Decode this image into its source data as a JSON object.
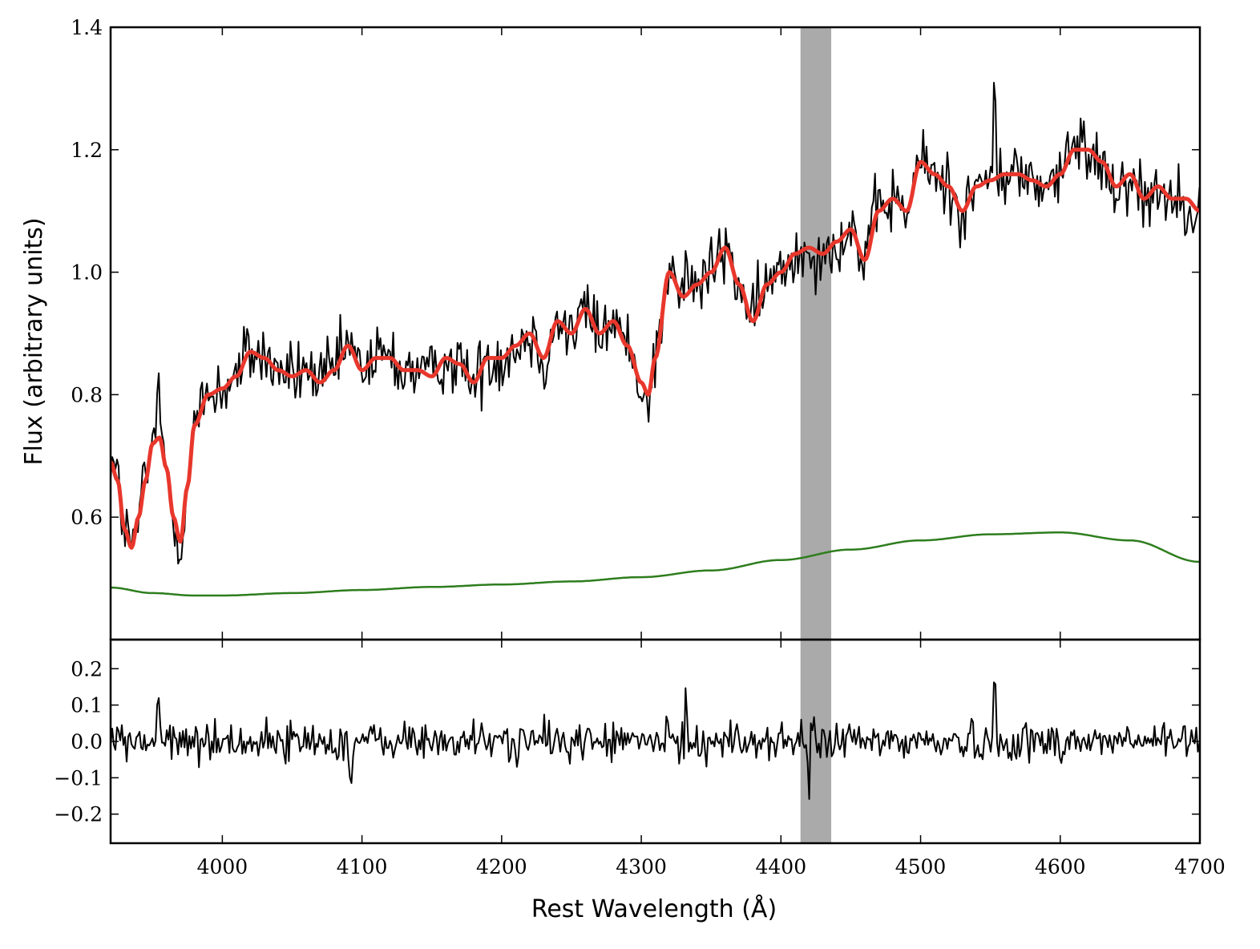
{
  "chart_data": {
    "type": "line",
    "xlabel": "Rest Wavelength (Å)",
    "xlim": [
      3920,
      4700
    ],
    "x_ticks": [
      4000,
      4100,
      4200,
      4300,
      4400,
      4500,
      4600,
      4700
    ],
    "shaded_band": {
      "x_start": 4414,
      "x_end": 4436,
      "color": "#aaaaaa"
    },
    "panels": [
      {
        "id": "flux",
        "ylabel": "Flux (arbitrary units)",
        "ylim": [
          0.4,
          1.4
        ],
        "y_ticks": [
          0.6,
          0.8,
          1.0,
          1.2,
          1.4
        ],
        "y_tick_labels": [
          "0.6",
          "0.8",
          "1.0",
          "1.2",
          "1.4"
        ],
        "series": [
          {
            "role": "observed",
            "color": "#000000",
            "width": 2,
            "noise_amp": 0.05,
            "spikes": [
              [
                4553,
                0.22
              ],
              [
                3954,
                0.18
              ],
              [
                4332,
                0.1
              ]
            ],
            "x": [
              3920,
              3925,
              3930,
              3935,
              3940,
              3945,
              3950,
              3955,
              3960,
              3965,
              3970,
              3975,
              3980,
              3990,
              4000,
              4010,
              4020,
              4030,
              4040,
              4050,
              4060,
              4070,
              4080,
              4090,
              4100,
              4110,
              4120,
              4130,
              4140,
              4150,
              4160,
              4170,
              4180,
              4190,
              4200,
              4210,
              4220,
              4230,
              4240,
              4250,
              4260,
              4270,
              4280,
              4290,
              4300,
              4305,
              4310,
              4320,
              4330,
              4340,
              4350,
              4360,
              4370,
              4380,
              4390,
              4400,
              4410,
              4420,
              4430,
              4440,
              4450,
              4460,
              4470,
              4480,
              4490,
              4500,
              4510,
              4520,
              4530,
              4540,
              4550,
              4560,
              4570,
              4580,
              4590,
              4600,
              4610,
              4620,
              4630,
              4640,
              4650,
              4660,
              4670,
              4680,
              4690,
              4700
            ],
            "values": [
              0.7,
              0.66,
              0.58,
              0.55,
              0.6,
              0.66,
              0.72,
              0.73,
              0.68,
              0.6,
              0.56,
              0.65,
              0.75,
              0.8,
              0.81,
              0.83,
              0.87,
              0.86,
              0.84,
              0.83,
              0.84,
              0.82,
              0.84,
              0.88,
              0.84,
              0.86,
              0.86,
              0.84,
              0.84,
              0.83,
              0.86,
              0.85,
              0.82,
              0.86,
              0.86,
              0.88,
              0.9,
              0.86,
              0.92,
              0.9,
              0.94,
              0.9,
              0.92,
              0.88,
              0.82,
              0.8,
              0.86,
              1.0,
              0.96,
              0.98,
              1.0,
              1.04,
              0.98,
              0.92,
              0.98,
              1.0,
              1.03,
              1.04,
              1.03,
              1.05,
              1.07,
              1.02,
              1.1,
              1.12,
              1.1,
              1.18,
              1.16,
              1.14,
              1.1,
              1.14,
              1.15,
              1.16,
              1.16,
              1.15,
              1.14,
              1.16,
              1.2,
              1.2,
              1.18,
              1.14,
              1.16,
              1.12,
              1.14,
              1.12,
              1.12,
              1.1
            ]
          },
          {
            "role": "model",
            "color": "#e8372c",
            "width": 5,
            "x": [
              3920,
              3925,
              3930,
              3935,
              3940,
              3945,
              3950,
              3955,
              3960,
              3965,
              3970,
              3975,
              3980,
              3990,
              4000,
              4010,
              4020,
              4030,
              4040,
              4050,
              4060,
              4070,
              4080,
              4090,
              4100,
              4110,
              4120,
              4130,
              4140,
              4150,
              4160,
              4170,
              4180,
              4190,
              4200,
              4210,
              4220,
              4230,
              4240,
              4250,
              4260,
              4270,
              4280,
              4290,
              4300,
              4305,
              4310,
              4320,
              4330,
              4340,
              4350,
              4360,
              4370,
              4380,
              4390,
              4400,
              4410,
              4420,
              4430,
              4440,
              4450,
              4460,
              4470,
              4480,
              4490,
              4500,
              4510,
              4520,
              4530,
              4540,
              4550,
              4560,
              4570,
              4580,
              4590,
              4600,
              4610,
              4620,
              4630,
              4640,
              4650,
              4660,
              4670,
              4680,
              4690,
              4700
            ],
            "values": [
              0.69,
              0.66,
              0.58,
              0.55,
              0.6,
              0.66,
              0.72,
              0.73,
              0.68,
              0.6,
              0.56,
              0.65,
              0.75,
              0.8,
              0.81,
              0.83,
              0.87,
              0.86,
              0.84,
              0.83,
              0.84,
              0.82,
              0.84,
              0.88,
              0.84,
              0.86,
              0.86,
              0.84,
              0.84,
              0.83,
              0.86,
              0.85,
              0.82,
              0.86,
              0.86,
              0.88,
              0.9,
              0.86,
              0.92,
              0.9,
              0.94,
              0.9,
              0.92,
              0.88,
              0.82,
              0.8,
              0.86,
              1.0,
              0.96,
              0.98,
              1.0,
              1.04,
              0.98,
              0.92,
              0.98,
              1.0,
              1.03,
              1.04,
              1.03,
              1.05,
              1.07,
              1.02,
              1.1,
              1.12,
              1.1,
              1.18,
              1.16,
              1.14,
              1.1,
              1.14,
              1.15,
              1.16,
              1.16,
              1.15,
              1.14,
              1.16,
              1.2,
              1.2,
              1.18,
              1.14,
              1.16,
              1.12,
              1.14,
              1.12,
              1.12,
              1.1
            ]
          },
          {
            "role": "continuum",
            "color": "#2e7d1e",
            "width": 2.5,
            "x": [
              3920,
              3950,
              3980,
              4000,
              4050,
              4100,
              4150,
              4200,
              4250,
              4300,
              4350,
              4400,
              4450,
              4500,
              4550,
              4600,
              4650,
              4700
            ],
            "values": [
              0.485,
              0.476,
              0.472,
              0.472,
              0.476,
              0.481,
              0.486,
              0.49,
              0.495,
              0.502,
              0.513,
              0.53,
              0.547,
              0.562,
              0.572,
              0.575,
              0.562,
              0.527
            ]
          }
        ]
      },
      {
        "id": "residuals",
        "ylabel": "",
        "ylim": [
          -0.28,
          0.28
        ],
        "y_ticks": [
          -0.2,
          -0.1,
          0.0,
          0.1,
          0.2
        ],
        "y_tick_labels": [
          "−0.2",
          "−0.1",
          "0.0",
          "0.1",
          "0.2"
        ],
        "series": [
          {
            "role": "residual",
            "color": "#000000",
            "width": 2,
            "noise_amp": 0.05,
            "spikes": [
              [
                4553,
                0.24
              ],
              [
                3954,
                0.19
              ],
              [
                4332,
                0.15
              ],
              [
                4092,
                -0.2
              ],
              [
                4420,
                -0.16
              ]
            ],
            "x": [
              3920,
              4700
            ],
            "values": [
              0.0,
              0.0
            ]
          }
        ]
      }
    ]
  }
}
